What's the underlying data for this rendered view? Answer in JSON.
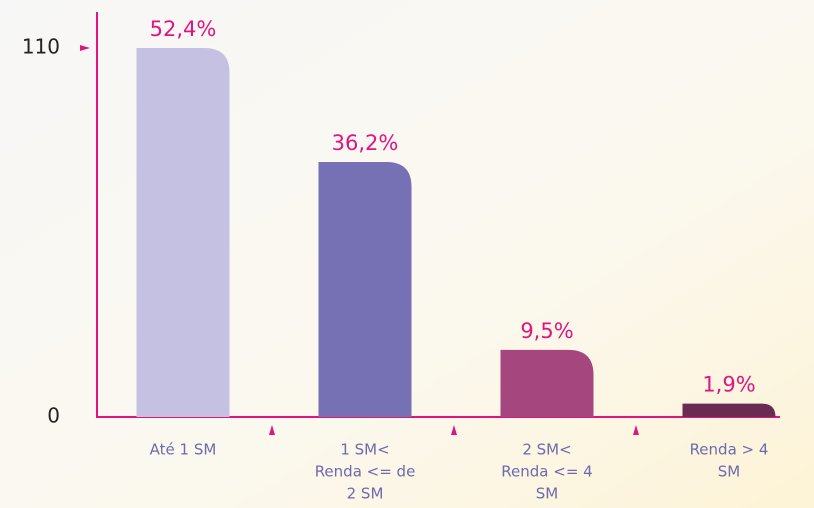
{
  "chart_data": {
    "type": "bar",
    "categories": [
      [
        "Até 1 SM"
      ],
      [
        "1 SM<",
        "Renda <= de",
        "2 SM"
      ],
      [
        "2 SM<",
        "Renda <= 4",
        "SM"
      ],
      [
        "Renda > 4",
        "SM"
      ]
    ],
    "values": [
      110,
      76,
      20,
      4
    ],
    "value_labels": [
      "52,4%",
      "36,2%",
      "9,5%",
      "1,9%"
    ],
    "colors": [
      "#c5c1e2",
      "#7571b4",
      "#a5467f",
      "#6a2b52"
    ],
    "ylim": [
      0,
      110
    ],
    "yticks": [
      0,
      110
    ]
  }
}
